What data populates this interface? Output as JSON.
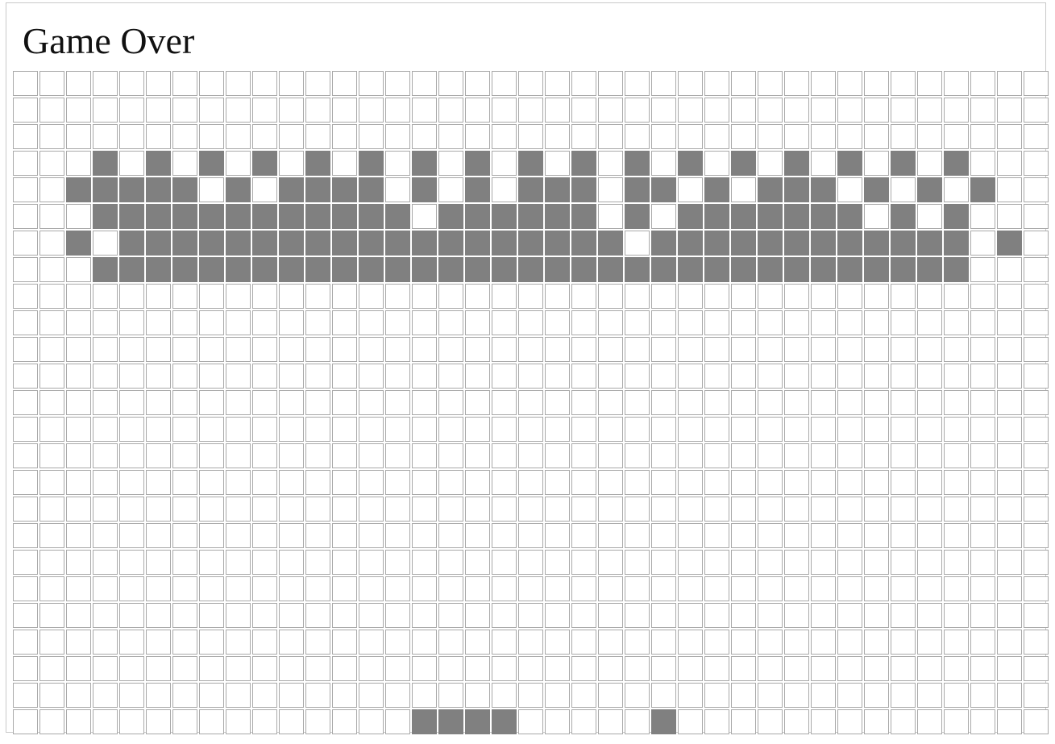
{
  "title": "Game Over",
  "board": {
    "columns": 39,
    "rows": 25,
    "colors": {
      "empty": "#ffffff",
      "filled": "#808080",
      "grid_line": "#a9a9a9"
    },
    "cells": [
      "000000000000000000000000000000000000000",
      "000000000000000000000000000000000000000",
      "000000000000000000000000000000000000000",
      "000101010101010101010101010101010101000",
      "001111101011110101011101101011101010100",
      "000111111111111011111101011111110101000",
      "001011111111111111111110111111111111010",
      "000111111111111111111111111111111111000",
      "000000000000000000000000000000000000000",
      "000000000000000000000000000000000000000",
      "000000000000000000000000000000000000000",
      "000000000000000000000000000000000000000",
      "000000000000000000000000000000000000000",
      "000000000000000000000000000000000000000",
      "000000000000000000000000000000000000000",
      "000000000000000000000000000000000000000",
      "000000000000000000000000000000000000000",
      "000000000000000000000000000000000000000",
      "000000000000000000000000000000000000000",
      "000000000000000000000000000000000000000",
      "000000000000000000000000000000000000000",
      "000000000000000000000000000000000000000",
      "000000000000000000000000000000000000000",
      "000000000000000000000000000000000000000",
      "000000000000000111100000100000000000000"
    ]
  }
}
